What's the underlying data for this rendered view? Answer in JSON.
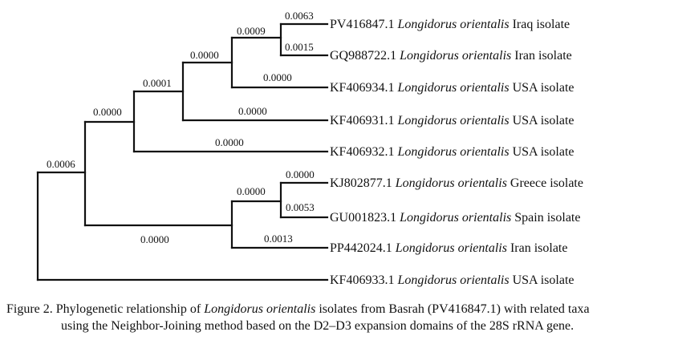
{
  "tree": {
    "leaves": [
      {
        "accession": "PV416847.1",
        "species": "Longidorus orientalis",
        "isolate": "Iraq isolate"
      },
      {
        "accession": "GQ988722.1",
        "species": "Longidorus orientalis",
        "isolate": "Iran isolate"
      },
      {
        "accession": "KF406934.1",
        "species": "Longidorus orientalis",
        "isolate": "USA isolate"
      },
      {
        "accession": "KF406931.1",
        "species": "Longidorus orientalis",
        "isolate": "USA isolate"
      },
      {
        "accession": "KF406932.1",
        "species": "Longidorus orientalis",
        "isolate": "USA isolate"
      },
      {
        "accession": "KJ802877.1",
        "species": "Longidorus orientalis",
        "isolate": "Greece isolate"
      },
      {
        "accession": "GU001823.1",
        "species": "Longidorus orientalis",
        "isolate": "Spain isolate"
      },
      {
        "accession": "PP442024.1",
        "species": "Longidorus orientalis",
        "isolate": "Iran isolate"
      },
      {
        "accession": "KF406933.1",
        "species": "Longidorus orientalis",
        "isolate": "USA isolate"
      }
    ],
    "branch_lengths": [
      "0.0063",
      "0.0015",
      "0.0009",
      "0.0000",
      "0.0000",
      "0.0001",
      "0.0000",
      "0.0000",
      "0.0000",
      "0.0000",
      "0.0053",
      "0.0000",
      "0.0013",
      "0.0000",
      "0.0006"
    ]
  },
  "caption": {
    "prefix": "Figure 2. Phylogenetic relationship of ",
    "species": "Longidorus orientalis",
    "suffix": " isolates from Basrah (PV416847.1) with related taxa",
    "line2": "using the Neighbor-Joining method based on the D2–D3 expansion domains of the 28S rRNA gene."
  }
}
